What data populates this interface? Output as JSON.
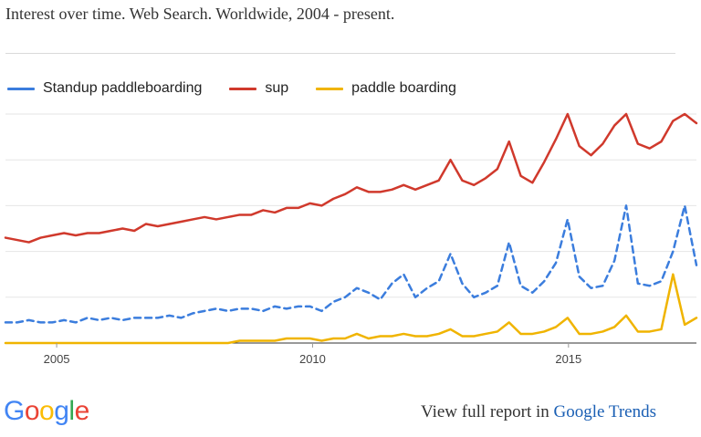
{
  "chart_data": {
    "type": "line",
    "title": "Interest over time. Web Search. Worldwide, 2004 - present.",
    "x_start": "2004-01",
    "x_step": "quarter",
    "x_end": "2017-06",
    "x_tick_labels": [
      "2005",
      "2010",
      "2015"
    ],
    "ylim": [
      0,
      100
    ],
    "grid": true,
    "legend_position": "top-left",
    "series": [
      {
        "name": "Standup paddleboarding",
        "color": "#3b7ddd",
        "dash": true,
        "values": [
          9,
          9,
          10,
          9,
          9,
          10,
          9,
          11,
          10,
          11,
          10,
          11,
          11,
          11,
          12,
          11,
          13,
          14,
          15,
          14,
          15,
          15,
          14,
          16,
          15,
          16,
          16,
          14,
          18,
          20,
          24,
          22,
          19,
          26,
          30,
          20,
          24,
          27,
          39,
          26,
          20,
          22,
          25,
          44,
          25,
          22,
          27,
          35,
          54,
          29,
          24,
          25,
          36,
          60,
          26,
          25,
          27,
          40,
          60,
          34
        ]
      },
      {
        "name": "sup",
        "color": "#d0392c",
        "dash": false,
        "values": [
          46,
          45,
          44,
          46,
          47,
          48,
          47,
          48,
          48,
          49,
          50,
          49,
          52,
          51,
          52,
          53,
          54,
          55,
          54,
          55,
          56,
          56,
          58,
          57,
          59,
          59,
          61,
          60,
          63,
          65,
          68,
          66,
          66,
          67,
          69,
          67,
          69,
          71,
          80,
          71,
          69,
          72,
          76,
          88,
          73,
          70,
          79,
          89,
          108,
          86,
          82,
          87,
          95,
          111,
          87,
          85,
          88,
          97,
          110,
          96
        ]
      },
      {
        "name": "paddle boarding",
        "color": "#f0b400",
        "dash": false,
        "values": [
          0,
          0,
          0,
          0,
          0,
          0,
          0,
          0,
          0,
          0,
          0,
          0,
          0,
          0,
          0,
          0,
          0,
          0,
          0,
          0,
          1,
          1,
          1,
          1,
          2,
          2,
          2,
          1,
          2,
          2,
          4,
          2,
          3,
          3,
          4,
          3,
          3,
          4,
          6,
          3,
          3,
          4,
          5,
          9,
          4,
          4,
          5,
          7,
          11,
          4,
          4,
          5,
          7,
          12,
          5,
          5,
          6,
          30,
          8,
          11
        ]
      }
    ]
  },
  "footer": {
    "logo_letters": [
      {
        "char": "G",
        "color": "#4285f4"
      },
      {
        "char": "o",
        "color": "#ea4335"
      },
      {
        "char": "o",
        "color": "#fbbc05"
      },
      {
        "char": "g",
        "color": "#4285f4"
      },
      {
        "char": "l",
        "color": "#34a853"
      },
      {
        "char": "e",
        "color": "#ea4335"
      }
    ],
    "view_text": "View full report in",
    "trends_link": "Google Trends"
  }
}
